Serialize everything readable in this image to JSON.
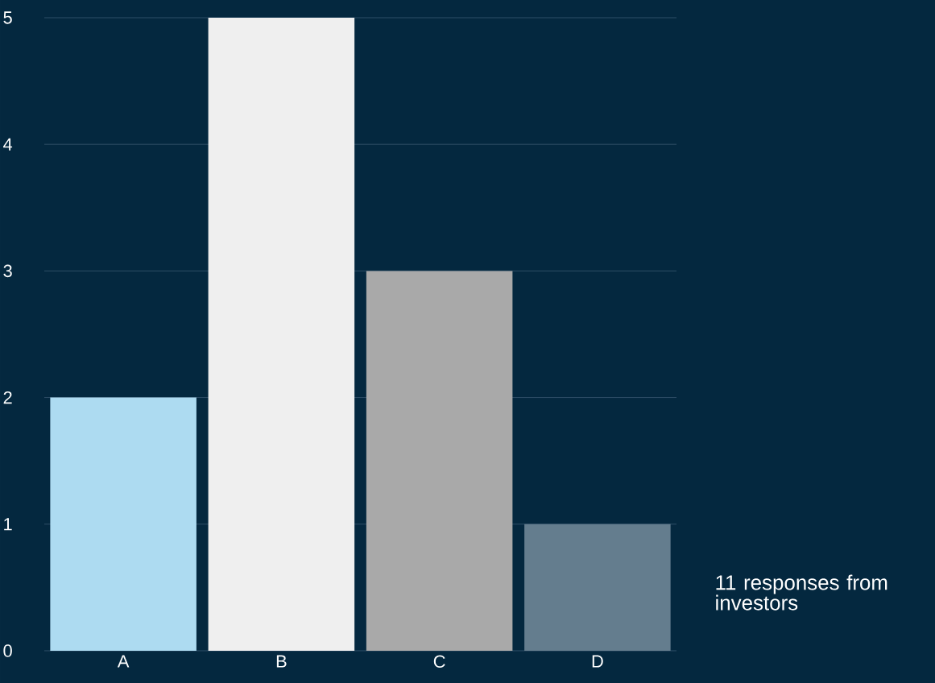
{
  "chart_data": {
    "type": "bar",
    "categories": [
      "A",
      "B",
      "C",
      "D"
    ],
    "values": [
      2,
      5,
      3,
      1
    ],
    "colors": [
      "#addbf1",
      "#efefef",
      "#a9a9a9",
      "#647d8e"
    ],
    "ylim": [
      0,
      5
    ],
    "yticks": [
      0,
      1,
      2,
      3,
      4,
      5
    ],
    "grid": "y",
    "annotations": [
      "11 responses from investors"
    ]
  }
}
